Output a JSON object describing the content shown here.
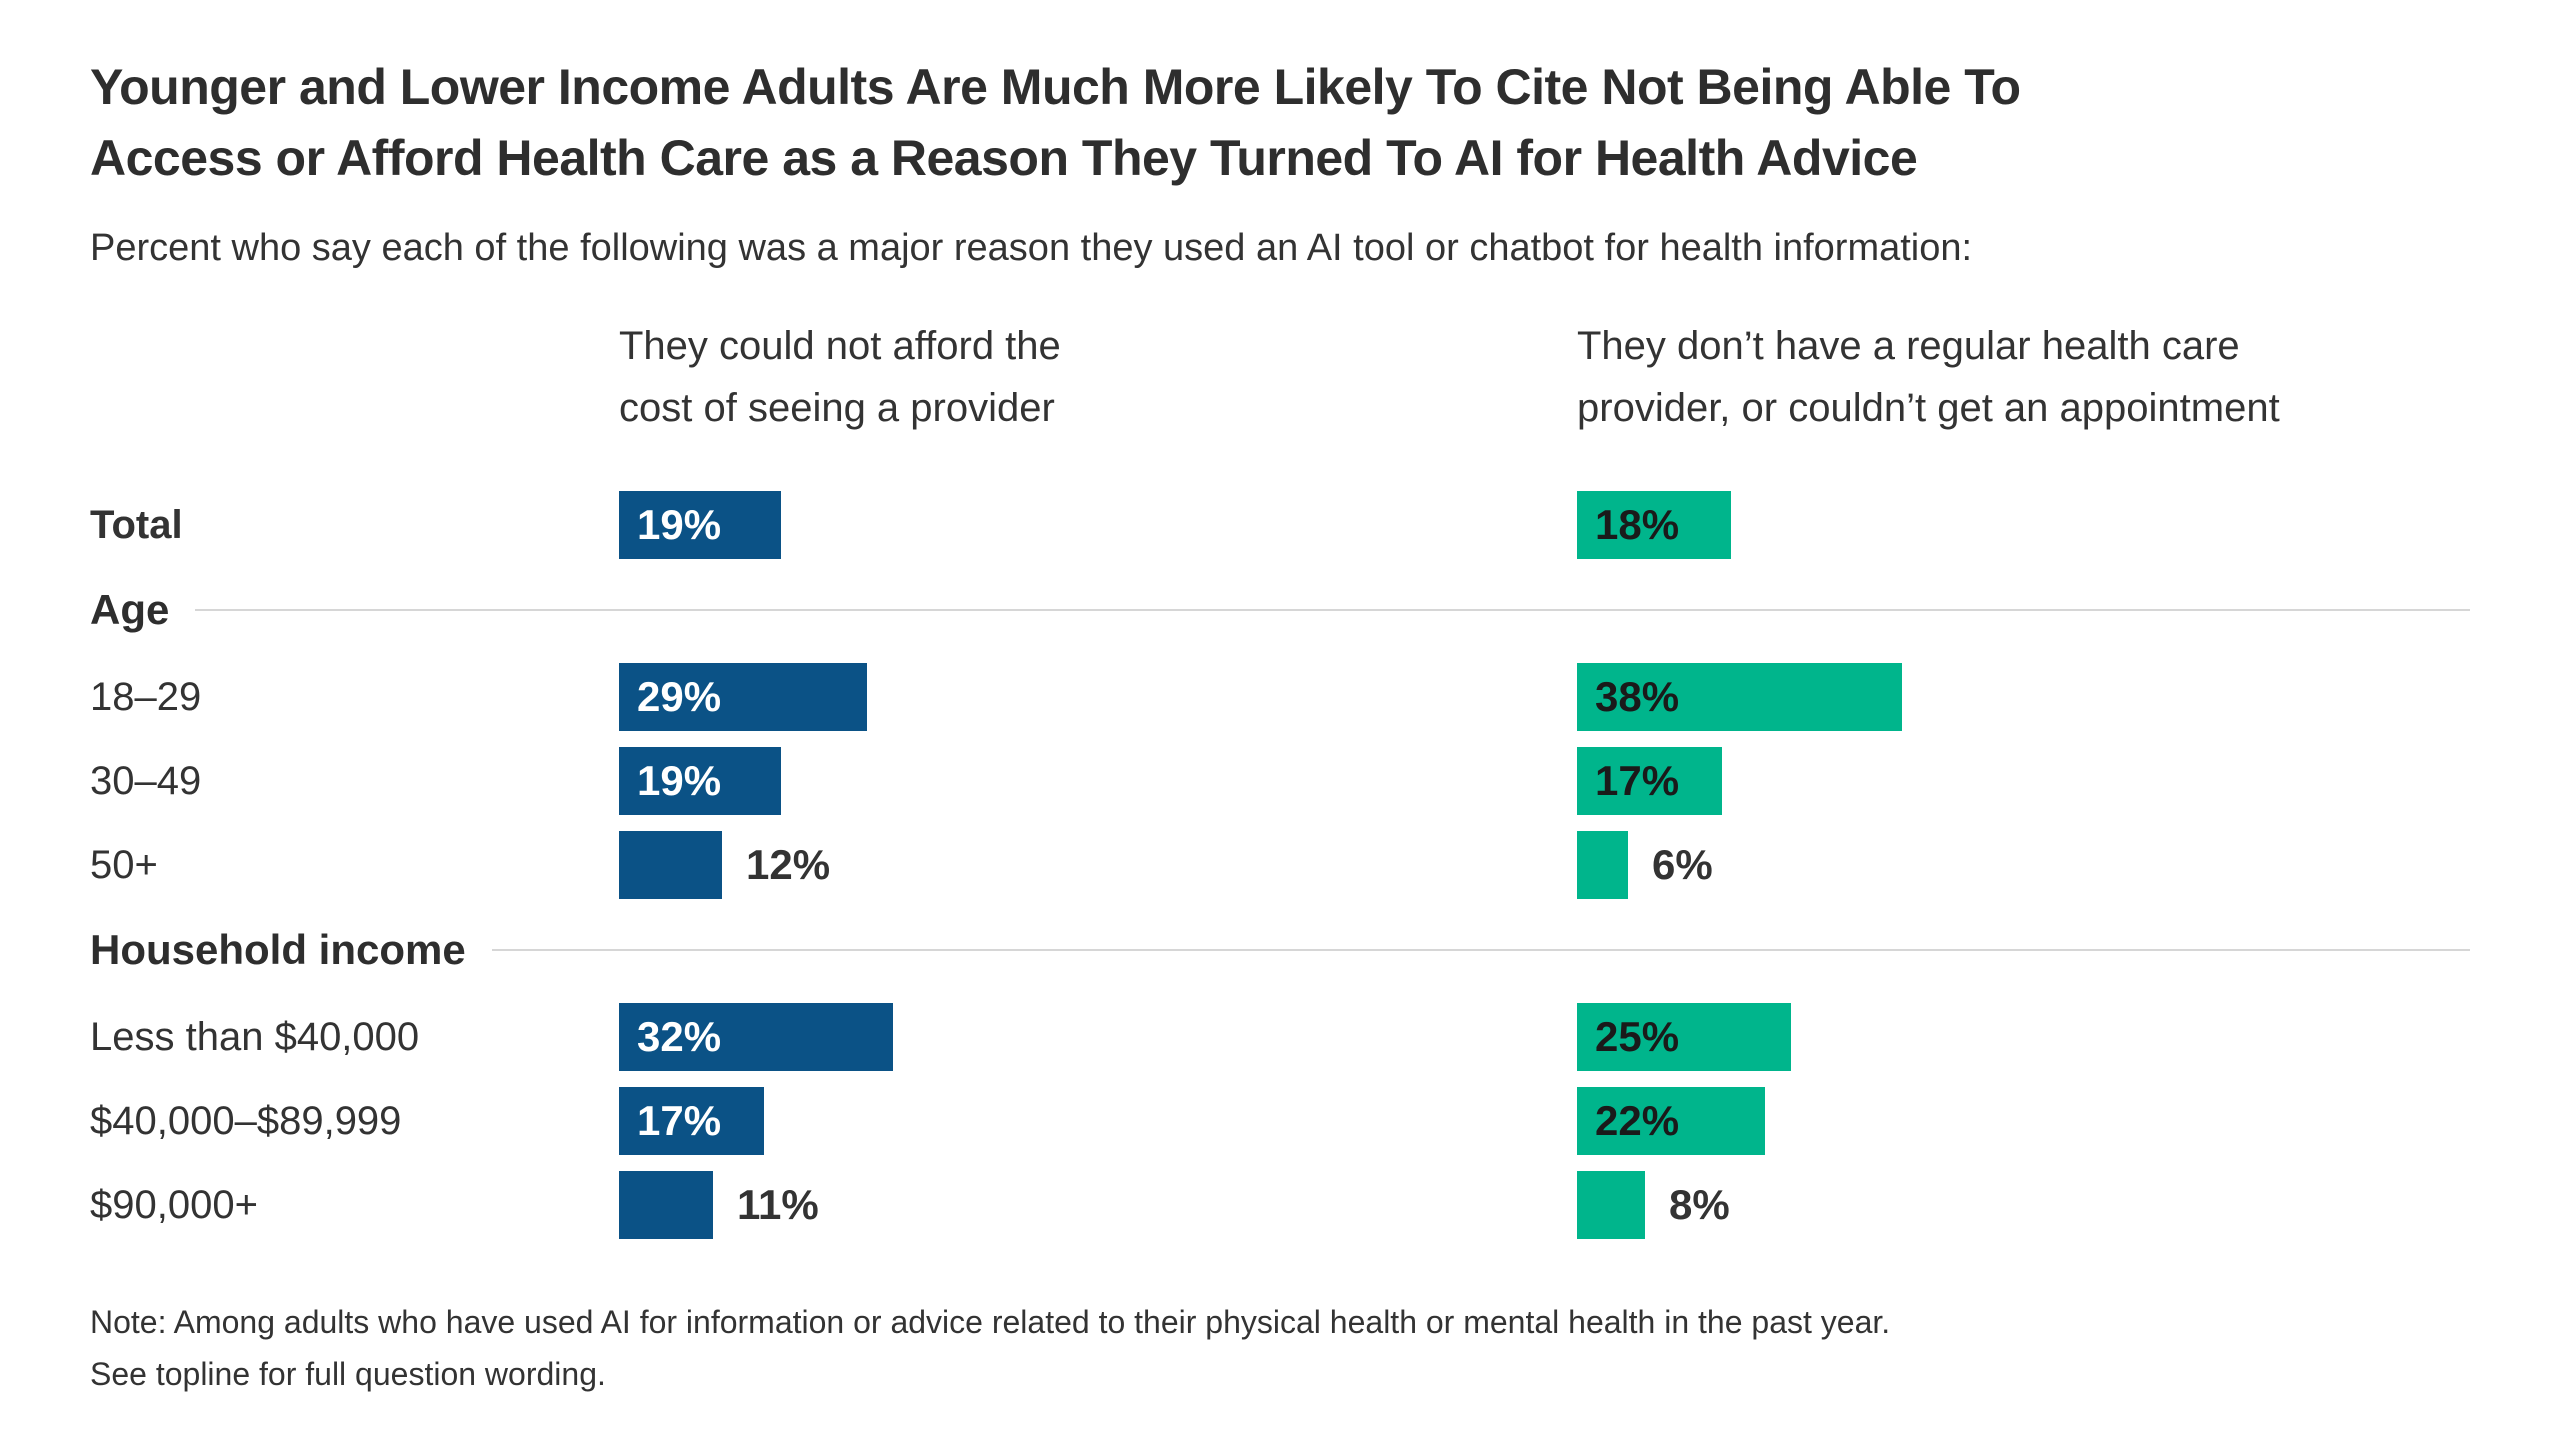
{
  "chart_data": {
    "type": "bar",
    "orientation": "horizontal",
    "title": "Younger and Lower Income Adults Are Much More Likely To Cite Not Being Able To\nAccess or Afford Health Care as a Reason They Turned To AI for Health Advice",
    "subtitle": "Percent who say each of the following was a major reason they used an AI tool or chatbot for health information:",
    "categories": [
      "Total",
      "18–29",
      "30–49",
      "50+",
      "Less than $40,000",
      "$40,000–$89,999",
      "$90,000+"
    ],
    "bold_categories": [
      "Total"
    ],
    "sections": [
      {
        "label": "Age",
        "before_index": 1
      },
      {
        "label": "Household income",
        "before_index": 4
      }
    ],
    "series": [
      {
        "name": "They could not afford the\ncost of seeing a provider",
        "color": "#0B5286",
        "label_color_inside": "#ffffff",
        "values": [
          19,
          29,
          19,
          12,
          32,
          17,
          11
        ]
      },
      {
        "name": "They don’t have a regular health care\nprovider, or couldn’t get an appointment",
        "color": "#00B58C",
        "label_color_inside": "#1a1a1a",
        "values": [
          18,
          38,
          17,
          6,
          25,
          22,
          8
        ]
      }
    ],
    "value_suffix": "%",
    "xlim": [
      0,
      40
    ],
    "grid": false,
    "legend_position": "column-headers",
    "note": "Note: Among adults who have used AI for information or advice related to their physical health or mental health in the past year.\nSee topline for full question wording.",
    "colors": {
      "divider": "#d6d6d6",
      "text": "#333333",
      "outside_value_label": "#333333"
    }
  }
}
